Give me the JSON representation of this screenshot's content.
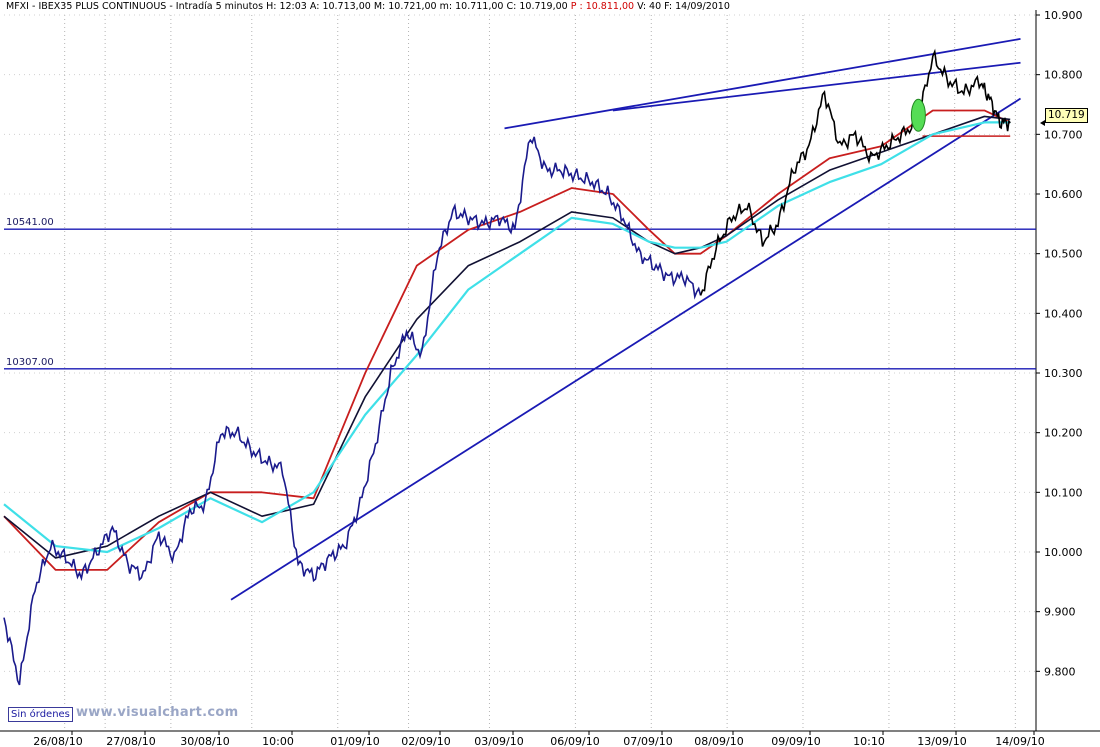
{
  "header": {
    "symbol": "MFXI",
    "instrument": "IBEX35 PLUS CONTINUOUS",
    "period": "Intradía 5 minutos",
    "h": "H: 12:03",
    "a": "A: 10.713,00",
    "m": "M: 10.721,00",
    "min": "m: 10.711,00",
    "c": "C: 10.719,00",
    "p": "P : 10.811,00",
    "v": "V: 40",
    "f": "F: 14/09/2010"
  },
  "status_label": "Sin órdenes",
  "watermark": "www.visualchart.com",
  "last_price": "10.719",
  "colors": {
    "price_blue": "#1a1a8c",
    "price_black": "#000000",
    "ma_red": "#c81e1e",
    "ma_black": "#111133",
    "ma_cyan": "#3fe0e8",
    "trendline": "#1a1ab4",
    "level": "#1a1ab4",
    "ellipse": "#55dd55"
  },
  "chart_data": {
    "type": "line",
    "ylim": [
      9700,
      10900
    ],
    "y_ticks": [
      "10.900",
      "10.800",
      "10.700",
      "10.600",
      "10.500",
      "10.400",
      "10.300",
      "10.200",
      "10.100",
      "10.000",
      "9.900",
      "9.800"
    ],
    "x_labels": [
      "26/08/10",
      "27/08/10",
      "30/08/10",
      "10:00",
      "01/09/10",
      "02/09/10",
      "03/09/10",
      "06/09/10",
      "07/09/10",
      "08/09/10",
      "09/09/10",
      "10:10",
      "13/09/10",
      "14/09/10"
    ],
    "horizontal_levels": [
      {
        "label": "10541.00",
        "value": 10541
      },
      {
        "label": "10307.00",
        "value": 10307
      }
    ],
    "price_series": {
      "x": [
        0,
        3,
        6,
        9,
        12,
        15,
        18,
        21,
        24,
        27,
        30,
        33,
        36,
        39,
        42,
        45,
        48,
        51,
        54,
        57,
        60,
        63,
        66,
        69,
        72,
        75,
        78,
        81,
        84,
        87,
        90,
        93,
        96,
        99,
        102,
        105,
        108,
        111,
        114,
        117,
        120,
        123,
        126,
        129,
        132,
        135
      ],
      "y": [
        9890,
        9780,
        9940,
        10010,
        9990,
        9960,
        10000,
        10040,
        9980,
        9960,
        10030,
        9990,
        10070,
        10080,
        10200,
        10200,
        10170,
        10150,
        10140,
        9980,
        9960,
        9990,
        10010,
        10080,
        10180,
        10300,
        10370,
        10330,
        10500,
        10570,
        10560,
        10550,
        10560,
        10540,
        10700,
        10640,
        10640,
        10630,
        10620,
        10600,
        10560,
        10500,
        10480,
        10460,
        10460,
        10430
      ]
    },
    "price_series_2": {
      "x": [
        135,
        138,
        141,
        144,
        147,
        150,
        153,
        156,
        159,
        162,
        165,
        168,
        171,
        174,
        177,
        180,
        183,
        186,
        189,
        191,
        193,
        195
      ],
      "y": [
        10430,
        10510,
        10560,
        10580,
        10520,
        10550,
        10640,
        10680,
        10770,
        10680,
        10700,
        10660,
        10680,
        10700,
        10720,
        10830,
        10790,
        10770,
        10790,
        10760,
        10720,
        10719
      ]
    },
    "ma_red": {
      "x": [
        0,
        10,
        20,
        30,
        40,
        50,
        60,
        70,
        80,
        90,
        100,
        110,
        118,
        125,
        130,
        135,
        140,
        150,
        160,
        170,
        180,
        190,
        195
      ],
      "y": [
        10060,
        9970,
        9970,
        10050,
        10100,
        10100,
        10090,
        10300,
        10480,
        10540,
        10570,
        10610,
        10600,
        10540,
        10500,
        10500,
        10530,
        10600,
        10660,
        10680,
        10740,
        10740,
        10720
      ]
    },
    "ma_black": {
      "x": [
        0,
        10,
        20,
        30,
        40,
        50,
        60,
        70,
        80,
        90,
        100,
        110,
        118,
        125,
        130,
        135,
        140,
        150,
        160,
        170,
        180,
        190,
        195
      ],
      "y": [
        10060,
        9990,
        10010,
        10060,
        10100,
        10060,
        10080,
        10260,
        10390,
        10480,
        10520,
        10570,
        10560,
        10520,
        10500,
        10510,
        10530,
        10590,
        10640,
        10670,
        10700,
        10730,
        10725
      ]
    },
    "ma_cyan": {
      "x": [
        0,
        10,
        20,
        30,
        40,
        50,
        60,
        70,
        80,
        90,
        100,
        110,
        118,
        125,
        130,
        135,
        140,
        150,
        160,
        170,
        180,
        190,
        195
      ],
      "y": [
        10080,
        10010,
        10000,
        10040,
        10090,
        10050,
        10100,
        10230,
        10330,
        10440,
        10500,
        10560,
        10550,
        10520,
        10510,
        10510,
        10520,
        10580,
        10620,
        10650,
        10700,
        10720,
        10720
      ]
    },
    "trendlines": [
      {
        "from": [
          44,
          9920
        ],
        "to": [
          197,
          10760
        ]
      },
      {
        "from": [
          97,
          10710
        ],
        "to": [
          197,
          10860
        ]
      },
      {
        "from": [
          118,
          10740
        ],
        "to": [
          197,
          10820
        ]
      }
    ],
    "support_line": {
      "value": 10697,
      "from_x": 178,
      "to_x": 195
    }
  }
}
